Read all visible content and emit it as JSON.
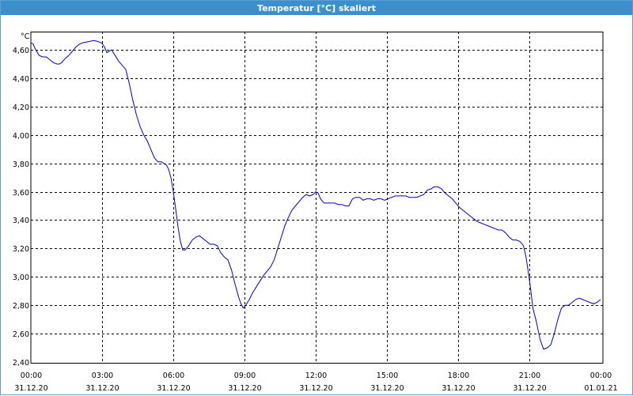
{
  "window": {
    "title": "Temperatur [°C] skaliert"
  },
  "chart_data": {
    "type": "line",
    "title": "Temperatur [°C] skaliert",
    "y_unit_label": "°C",
    "ylim": [
      2.4,
      4.7
    ],
    "yticks": [
      "2,40",
      "2,60",
      "2,80",
      "3,00",
      "3,20",
      "3,40",
      "3,60",
      "3,80",
      "4,00",
      "4,20",
      "4,40",
      "4,60"
    ],
    "xlim_hours": [
      0,
      24
    ],
    "xticks": [
      {
        "time": "00:00",
        "date": "31.12.20"
      },
      {
        "time": "03:00",
        "date": "31.12.20"
      },
      {
        "time": "06:00",
        "date": "31.12.20"
      },
      {
        "time": "09:00",
        "date": "31.12.20"
      },
      {
        "time": "12:00",
        "date": "31.12.20"
      },
      {
        "time": "15:00",
        "date": "31.12.20"
      },
      {
        "time": "18:00",
        "date": "31.12.20"
      },
      {
        "time": "21:00",
        "date": "31.12.20"
      },
      {
        "time": "00:00",
        "date": "01.01.21"
      }
    ],
    "grid": true,
    "line_color": "#0000c8",
    "series": [
      {
        "x_hours": [
          0,
          0.1,
          0.2,
          0.35,
          0.5,
          0.65,
          0.8,
          0.95,
          1.1,
          1.2,
          1.3,
          1.45,
          1.6,
          1.75,
          1.9,
          2.05,
          2.2,
          2.35,
          2.5,
          2.65,
          2.8,
          2.95,
          3.0,
          3.1,
          3.2,
          3.3,
          3.4,
          3.55,
          3.7,
          3.85,
          4.0,
          4.15,
          4.3,
          4.45,
          4.6,
          4.75,
          4.9,
          5.05,
          5.2,
          5.35,
          5.5,
          5.6,
          5.7,
          5.8,
          5.9,
          6.0,
          6.1,
          6.2,
          6.3,
          6.4,
          6.5,
          6.65,
          6.8,
          6.95,
          7.1,
          7.25,
          7.4,
          7.55,
          7.7,
          7.85,
          8.0,
          8.15,
          8.3,
          8.45,
          8.6,
          8.75,
          8.85,
          8.95,
          9.05,
          9.2,
          9.35,
          9.5,
          9.65,
          9.8,
          9.95,
          10.1,
          10.25,
          10.4,
          10.55,
          10.7,
          10.85,
          11.0,
          11.15,
          11.3,
          11.45,
          11.6,
          11.75,
          11.9,
          12.0,
          12.1,
          12.2,
          12.35,
          12.5,
          12.65,
          12.8,
          12.95,
          13.1,
          13.25,
          13.4,
          13.55,
          13.7,
          13.85,
          14.0,
          14.15,
          14.3,
          14.45,
          14.6,
          14.75,
          14.9,
          15.05,
          15.2,
          15.35,
          15.5,
          15.65,
          15.8,
          15.95,
          16.1,
          16.25,
          16.4,
          16.55,
          16.7,
          16.85,
          17.0,
          17.15,
          17.3,
          17.45,
          17.6,
          17.75,
          17.9,
          18.05,
          18.2,
          18.35,
          18.5,
          18.65,
          18.8,
          18.95,
          19.1,
          19.25,
          19.4,
          19.55,
          19.7,
          19.85,
          20.0,
          20.15,
          20.3,
          20.45,
          20.6,
          20.75,
          20.85,
          20.95,
          21.05,
          21.15,
          21.3,
          21.45,
          21.6,
          21.75,
          21.9,
          22.05,
          22.2,
          22.35,
          22.5,
          22.65,
          22.8,
          22.95,
          23.1,
          23.25,
          23.4,
          23.55,
          23.7,
          23.85,
          24.0
        ],
        "values": [
          4.65,
          4.64,
          4.6,
          4.56,
          4.55,
          4.55,
          4.53,
          4.51,
          4.5,
          4.5,
          4.51,
          4.54,
          4.56,
          4.59,
          4.62,
          4.64,
          4.65,
          4.655,
          4.66,
          4.665,
          4.66,
          4.65,
          4.645,
          4.62,
          4.58,
          4.59,
          4.6,
          4.56,
          4.52,
          4.49,
          4.46,
          4.36,
          4.24,
          4.14,
          4.06,
          4.0,
          3.96,
          3.9,
          3.84,
          3.81,
          3.81,
          3.8,
          3.79,
          3.76,
          3.7,
          3.6,
          3.48,
          3.35,
          3.25,
          3.19,
          3.19,
          3.22,
          3.26,
          3.28,
          3.29,
          3.27,
          3.25,
          3.23,
          3.23,
          3.22,
          3.17,
          3.14,
          3.12,
          3.05,
          2.95,
          2.86,
          2.81,
          2.78,
          2.8,
          2.84,
          2.89,
          2.93,
          2.97,
          3.01,
          3.04,
          3.07,
          3.12,
          3.2,
          3.28,
          3.36,
          3.42,
          3.47,
          3.5,
          3.53,
          3.56,
          3.58,
          3.57,
          3.58,
          3.6,
          3.59,
          3.55,
          3.52,
          3.52,
          3.52,
          3.52,
          3.51,
          3.51,
          3.5,
          3.5,
          3.55,
          3.56,
          3.56,
          3.54,
          3.55,
          3.55,
          3.54,
          3.55,
          3.55,
          3.54,
          3.55,
          3.56,
          3.57,
          3.57,
          3.57,
          3.57,
          3.56,
          3.56,
          3.56,
          3.57,
          3.58,
          3.61,
          3.62,
          3.635,
          3.635,
          3.62,
          3.59,
          3.57,
          3.55,
          3.52,
          3.49,
          3.47,
          3.45,
          3.43,
          3.41,
          3.39,
          3.38,
          3.37,
          3.36,
          3.35,
          3.34,
          3.33,
          3.33,
          3.31,
          3.28,
          3.26,
          3.26,
          3.25,
          3.22,
          3.15,
          3.04,
          2.92,
          2.78,
          2.68,
          2.56,
          2.49,
          2.5,
          2.52,
          2.6,
          2.7,
          2.78,
          2.8,
          2.8,
          2.82,
          2.84,
          2.85,
          2.84,
          2.83,
          2.82,
          2.81,
          2.82,
          2.84
        ]
      }
    ]
  }
}
